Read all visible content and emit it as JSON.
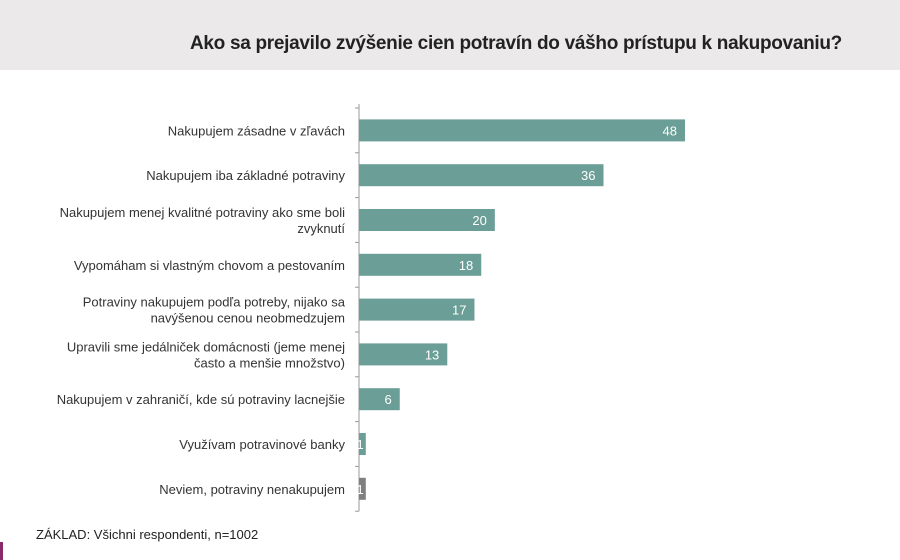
{
  "chart_data": {
    "type": "bar",
    "orientation": "horizontal",
    "title": "Ako sa prejavilo zvýšenie cien potravín do vášho prístupu k nakupovaniu?",
    "categories": [
      [
        "Nakupujem zásadne v zľavách"
      ],
      [
        "Nakupujem iba základné potraviny"
      ],
      [
        "Nakupujem menej kvalitné potraviny ako sme boli",
        "zvyknutí"
      ],
      [
        "Vypomáham si vlastným chovom a pestovaním"
      ],
      [
        "Potraviny nakupujem podľa potreby, nijako sa",
        "navýšenou cenou neobmedzujem"
      ],
      [
        "Upravili sme jedálniček domácnosti (jeme menej",
        "často a menšie množstvo)"
      ],
      [
        "Nakupujem v zahraničí, kde sú potraviny lacnejšie"
      ],
      [
        "Využívam potravinové banky"
      ],
      [
        "Neviem, potraviny nenakupujem"
      ]
    ],
    "values": [
      48,
      36,
      20,
      18,
      17,
      13,
      6,
      1,
      1
    ],
    "bar_colors": [
      "#6a9e96",
      "#6a9e96",
      "#6a9e96",
      "#6a9e96",
      "#6a9e96",
      "#6a9e96",
      "#6a9e96",
      "#6a9e96",
      "#808080"
    ],
    "data_labels": true,
    "grid": false
  },
  "footer": "ZÁKLAD: Všichni respondenti, n=1002"
}
